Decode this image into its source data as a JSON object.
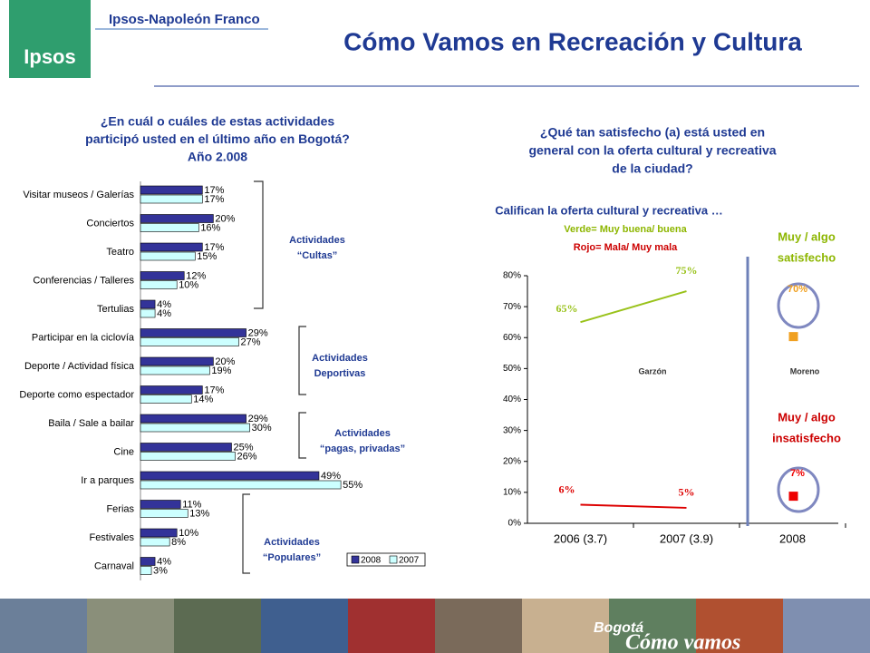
{
  "header": {
    "logo": "Ipsos",
    "company": "Ipsos-Napoleón Franco",
    "title": "Cómo Vamos en Recreación y Cultura"
  },
  "chart_data": [
    {
      "type": "bar",
      "orientation": "horizontal",
      "title": [
        "¿En cuál o cuáles de estas actividades",
        "participó usted en el último año en Bogotá?",
        "Año 2.008"
      ],
      "categories": [
        "Visitar museos / Galerías",
        "Conciertos",
        "Teatro",
        "Conferencias / Talleres",
        "Tertulias",
        "Participar en la ciclovía",
        "Deporte / Actividad física",
        "Deporte como espectador",
        "Baila / Sale a bailar",
        "Cine",
        "Ir a parques",
        "Ferias",
        "Festivales",
        "Carnaval"
      ],
      "series": [
        {
          "name": "2008",
          "color": "#333399",
          "values": [
            17,
            20,
            17,
            12,
            4,
            29,
            20,
            17,
            29,
            25,
            49,
            11,
            10,
            4
          ],
          "value_labels": [
            "17%",
            "20%",
            "17%",
            "12%",
            "4%",
            "29%",
            "20%",
            "17%",
            "29%",
            "25%",
            "49%",
            "11%",
            "10%",
            "4%"
          ]
        },
        {
          "name": "2007",
          "color": "#ccffff",
          "values": [
            17,
            16,
            15,
            10,
            4,
            27,
            19,
            14,
            30,
            26,
            55,
            13,
            8,
            3
          ],
          "value_labels": [
            "17%",
            "16%",
            "15%",
            "10%",
            "4%",
            "27%",
            "19%",
            "14%",
            "30%",
            "26%",
            "55%",
            "13%",
            "8%",
            "3%"
          ]
        }
      ],
      "groups": [
        [
          "Actividades",
          "“Cultas”"
        ],
        [
          "Actividades",
          "Deportivas"
        ],
        [
          "Actividades",
          "“pagas, privadas”"
        ],
        [
          "Actividades",
          "“Populares”"
        ]
      ],
      "legend": "bottom-right"
    },
    {
      "type": "line",
      "title": [
        "¿Qué tan satisfecho (a) está usted en",
        "general con la oferta cultural y recreativa",
        "de la ciudad?"
      ],
      "subtitle": "Califican la oferta cultural y recreativa …",
      "notes": [
        "Verde= Muy buena/ buena",
        "Rojo= Mala/ Muy mala"
      ],
      "categories": [
        "2006 (3.7)",
        "2007 (3.9)",
        "2008"
      ],
      "series": [
        {
          "color": "#99c21a",
          "values": [
            65,
            75,
            null
          ],
          "value_labels": [
            "65%",
            "75%",
            null
          ]
        },
        {
          "color": "#dd0000",
          "values": [
            6,
            5,
            null
          ],
          "value_labels": [
            "6%",
            "5%",
            null
          ]
        }
      ],
      "markers": [
        {
          "value": 70,
          "label": "70%",
          "color": "#f0a020",
          "text": [
            "Muy / algo",
            "satisfecho"
          ],
          "text_color": "#8db600"
        },
        {
          "value": 7,
          "label": "7%",
          "color": "#ee0000",
          "text": [
            "Muy / algo",
            "insatisfecho"
          ],
          "text_color": "#cc0000"
        }
      ],
      "annotations": [
        "Garzón",
        "Moreno"
      ],
      "ylim": [
        0,
        80
      ],
      "yticks": [
        {
          "value": 0,
          "label": "0%"
        },
        {
          "value": 10,
          "label": "10%"
        },
        {
          "value": 20,
          "label": "20%"
        },
        {
          "value": 30,
          "label": "30%"
        },
        {
          "value": 40,
          "label": "40%"
        },
        {
          "value": 50,
          "label": "50%"
        },
        {
          "value": 60,
          "label": "60%"
        },
        {
          "value": 70,
          "label": "70%"
        },
        {
          "value": 80,
          "label": "80%"
        }
      ]
    }
  ],
  "footer": {
    "logo": [
      "Bogotá",
      "Cómo vamos"
    ]
  }
}
